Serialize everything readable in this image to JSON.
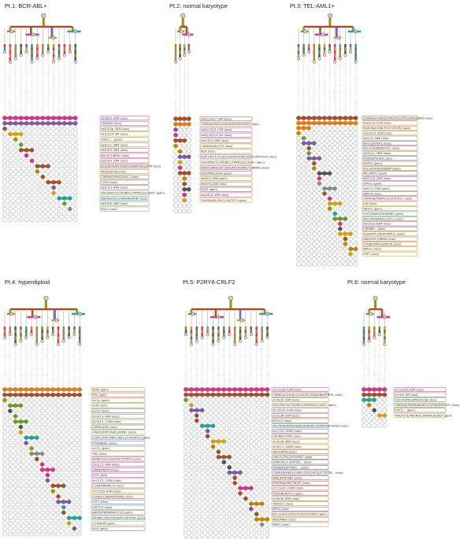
{
  "colors": {
    "brown": "#a0522d",
    "olive": "#b8860b",
    "purple": "#7b5aa6",
    "magenta": "#d63384",
    "green": "#6b9a2e",
    "teal": "#2aa198",
    "gray": "#8c8c8c",
    "gold": "#d4a017",
    "orange": "#e07b1a",
    "dark": "#555555"
  },
  "patients": [
    {
      "title": "Pt.1: BCR-ABL+",
      "columns": 14,
      "labels": [
        {
          "text": "del16(3–20M (loss)",
          "color": "magenta"
        },
        {
          "text": "CDKN2A (loss)",
          "color": "purple"
        },
        {
          "text": "del13(3p–38M (loss)",
          "color": "brown"
        },
        {
          "text": "del12(15–3M (loss)",
          "color": "gold"
        },
        {
          "text": "TOP2 (... (gain)",
          "color": "olive"
        },
        {
          "text": "del12(1–28M (loss)",
          "color": "green"
        },
        {
          "text": "del13(3–34M (loss)",
          "color": "brown"
        },
        {
          "text": "MALAT1/NEAT (loss)",
          "color": "magenta"
        },
        {
          "text": "del13(4–35M (loss)",
          "color": "magenta"
        },
        {
          "text": "BCR/ZFM/AFF4/KMT2A/NRP1P/SEPT5 (loss)",
          "color": "brown"
        },
        {
          "text": "PAX5/EIF2/B (loss)",
          "color": "olive"
        },
        {
          "text": "CAPRIN1/PMS2/RAC1 (loss)",
          "color": "brown"
        },
        {
          "text": "CCR4 (loss)",
          "color": "brown"
        },
        {
          "text": "del11(9–45M (loss)",
          "color": "purple"
        },
        {
          "text": "ERG/ZNF/OLF/RUNX1/TMPRSS2/CHAF1 (gain)",
          "color": "gold"
        },
        {
          "text": "ANKRD/ODC1/KM/NR/NTRK (loss)",
          "color": "teal"
        },
        {
          "text": "del19(6–26M (loss)",
          "color": "green"
        },
        {
          "text": "POLG (loss)",
          "color": "gray"
        }
      ],
      "rows": 20
    },
    {
      "title": "Pt.2: normal karyotype",
      "columns": 4,
      "labels": [
        {
          "text": "del1(14)(1–14M (loss)",
          "color": "brown"
        },
        {
          "text": "CDKN2A/PAX5/CDKN2B/MTAP/PAX5 (loss)",
          "color": "orange"
        },
        {
          "text": "del1(13)(3–11M (loss)",
          "color": "purple"
        },
        {
          "text": "del2(15)(14–2M (loss)",
          "color": "magenta"
        },
        {
          "text": "del13(2)-35M (loss)",
          "color": "brown"
        },
        {
          "text": "CDKN2A/NLC/T3 (loss)",
          "color": "olive"
        },
        {
          "text": "BCR (loss)",
          "color": "olive"
        },
        {
          "text": "IKZF1/NOTCH1/ELF4/GATA3/RB1/IKZF3/NOTCH1 (loss)",
          "color": "purple"
        },
        {
          "text": "ERG/ZNF/OLF/RUNX1/TMPRSS2/CHAF1 (gain)",
          "color": "gold"
        },
        {
          "text": "BARX1/ARHGEF28/AGAP1/RUNX1T1/NRN1 (loss)",
          "color": "magenta"
        },
        {
          "text": "NUP/PMS2/HOX (gain)",
          "color": "brown"
        },
        {
          "text": "delX(3)-32M (gain)",
          "color": "olive"
        },
        {
          "text": "del2(9)-43M (loss)",
          "color": "brown"
        },
        {
          "text": "PAX5 (gain)",
          "color": "dark"
        },
        {
          "text": "del16(3)-45M (loss)",
          "color": "magenta"
        },
        {
          "text": "CHIMA/NKL/MLFL/1A/TCF3 (gain)",
          "color": "gold"
        }
      ],
      "rows": 18
    },
    {
      "title": "Pt.3: TEL-AML1+",
      "columns": 12,
      "labels": [
        {
          "text": "CDKN2A/CHD4/ETV6/STK3/TP53/FRB2/BRD (loss)",
          "color": "brown"
        },
        {
          "text": "del12(3)–21M (loss)",
          "color": "orange"
        },
        {
          "text": "PAX5/KLF/CEB.P/TCF3/TOP2 (loss)",
          "color": "orange"
        },
        {
          "text": "del19(10–20M (loss)",
          "color": "olive"
        },
        {
          "text": "del1(3)-36M (loss)",
          "color": "green"
        },
        {
          "text": "BTG1/SKYER1 (loss)",
          "color": "purple"
        },
        {
          "text": "BCL2/CREBBP/ETV1 (loss)",
          "color": "brown"
        },
        {
          "text": "del3(11)-38M (loss)",
          "color": "green"
        },
        {
          "text": "RPS6/DPGHDK (loss)",
          "color": "purple"
        },
        {
          "text": "DHPS1 (gain)",
          "color": "brown"
        },
        {
          "text": "POLG/PHF6/CREBBP (gain)",
          "color": "olive"
        },
        {
          "text": "MEL/KMT2 (gain)",
          "color": "dark"
        },
        {
          "text": "del11(3)-25M (loss)",
          "color": "magenta"
        },
        {
          "text": "STAG1 (gain)",
          "color": "gray"
        },
        {
          "text": "del7(1)-33M (gain)",
          "color": "gray"
        },
        {
          "text": "ARPC8 (loss)",
          "color": "brown"
        },
        {
          "text": "CDKN2B/PSMA1/SULT/STK11 (loss)",
          "color": "magenta"
        },
        {
          "text": "JUN (loss)",
          "color": "gold"
        },
        {
          "text": "NR3C1 (gain)",
          "color": "olive"
        },
        {
          "text": "FHIT/SMAR/CHD8/RB1 (gain)",
          "color": "teal"
        },
        {
          "text": "MEF2/PRDM/SLC/2211 (loss)",
          "color": "green"
        },
        {
          "text": "del15(3)-63M (loss)",
          "color": "magenta"
        },
        {
          "text": "CREBBP... (loss)",
          "color": "dark"
        },
        {
          "text": "PLEK/NTF1/NUP/TRIP11 (gain)",
          "color": "gold"
        },
        {
          "text": "DBH/KMT2/RBM4 (loss)",
          "color": "brown"
        },
        {
          "text": "CTNB/TOMO/AZBF36 (loss)",
          "color": "olive"
        },
        {
          "text": "BRCA1 (loss)",
          "color": "olive"
        },
        {
          "text": "LRP1 (loss)",
          "color": "gold"
        }
      ],
      "rows": 30
    },
    {
      "title": "Pt.4: hyperdiploid",
      "columns": 15,
      "labels": [
        {
          "text": "PAX5 (gain)",
          "color": "orange"
        },
        {
          "text": "PHL (gain)",
          "color": "brown"
        },
        {
          "text": "chr1p (gain)",
          "color": "olive"
        },
        {
          "text": "chr8 (loss)",
          "color": "green"
        },
        {
          "text": "chr10 (loss)",
          "color": "dark"
        },
        {
          "text": "chr4(13–74M (loss)",
          "color": "green"
        },
        {
          "text": "chr4(13–118M (loss)",
          "color": "green"
        },
        {
          "text": "CDKN1A/RA (loss)",
          "color": "dark"
        },
        {
          "text": "CREB1/KMT2A/BCL6/RB1 (gain)",
          "color": "gold"
        },
        {
          "text": "CCNT1/FHIT/MEF2/RB1/ETV6/RPS3 (gain)",
          "color": "teal"
        },
        {
          "text": "PTEN/BDEL (loss)",
          "color": "purple"
        },
        {
          "text": "chr11 (gain)",
          "color": "olive"
        },
        {
          "text": "TNC (loss)",
          "color": "gray"
        },
        {
          "text": "NHBP2/COLQ/SPSEP1/TFRP2 (loss)",
          "color": "brown"
        },
        {
          "text": "chr2(11–74M (loss)",
          "color": "magenta"
        },
        {
          "text": "CRBN/PRLPR (loss)",
          "color": "magenta"
        },
        {
          "text": "chr9 (loss)",
          "color": "magenta"
        },
        {
          "text": "chr7(13–118M (loss)",
          "color": "purple"
        },
        {
          "text": "CCRN/MANNL73 (loss)",
          "color": "brown"
        },
        {
          "text": "chr15(25–44M (loss)",
          "color": "olive"
        },
        {
          "text": "CCND1/CDB/PAX5/ERG (loss)",
          "color": "brown"
        },
        {
          "text": "CFTG (loss)",
          "color": "purple"
        },
        {
          "text": "HIST1/3 (loss)",
          "color": "teal"
        },
        {
          "text": "ARID5/PRDM/NR3C1/5 (gain)",
          "color": "brown"
        },
        {
          "text": "APOBEC3/NCOA5/BPTF/ATOX/R (gain)",
          "color": "teal"
        },
        {
          "text": "CCT6A/P6 (gain)",
          "color": "gold"
        },
        {
          "text": "chrX (gain)",
          "color": "purple"
        }
      ],
      "rows": 28
    },
    {
      "title": "Pt.5: P2RY8-CRLF2",
      "columns": 16,
      "labels": [
        {
          "text": "chr12(35–53M (loss)",
          "color": "magenta"
        },
        {
          "text": "CDKN2A/CHL/DLG/GATA3/CR8/KANK/MTCP1 (loss)",
          "color": "brown"
        },
        {
          "text": "chr6(30–33M (loss)",
          "color": "green"
        },
        {
          "text": "ERG/ZNF/OLF/RUNX1/TMPRSS2/CHAF1 (gain)",
          "color": "gold"
        },
        {
          "text": "chr15(15–43M (loss)",
          "color": "purple"
        },
        {
          "text": "chr3(36–50M (loss)",
          "color": "brown"
        },
        {
          "text": "BTG1/3 (loss)",
          "color": "brown"
        },
        {
          "text": "NF2/NUN/MIMO/SBN/SR/BZNF/SF/MPP/SETD/GD (loss)",
          "color": "teal"
        },
        {
          "text": "chr7(13–156M (loss)",
          "color": "purple"
        },
        {
          "text": "CACNB1/TP63 (loss)",
          "color": "brown"
        },
        {
          "text": "chr6(26–46M (loss)",
          "color": "gold"
        },
        {
          "text": "chr6(11–136M (loss)",
          "color": "olive"
        },
        {
          "text": "ARHGAP30 (loss)",
          "color": "brown"
        },
        {
          "text": "CNOT4/TBC/SP3/RBST (loss)",
          "color": "brown"
        },
        {
          "text": "SPINT/ALLT1/EPT/R/... (loss)",
          "color": "dark"
        },
        {
          "text": "SMAD/REB/TPRD/... (gain)",
          "color": "dark"
        },
        {
          "text": "CDKN1B/MBOL/G/MP1/STAT/SETA/STTET/B... (loss)",
          "color": "purple"
        },
        {
          "text": "WRCH/PHPSB7 (loss)",
          "color": "brown"
        },
        {
          "text": "RPS/MAN/FBF/FNSPT (loss)",
          "color": "brown"
        },
        {
          "text": "chr11(20–103M (loss)",
          "color": "magenta"
        },
        {
          "text": "TOP2/BCR/OLG (gain)",
          "color": "brown"
        },
        {
          "text": "chr6(30–83M (loss)",
          "color": "brown"
        },
        {
          "text": "TBX/B11 (loss)",
          "color": "olive"
        },
        {
          "text": "BPG3 (loss)",
          "color": "purple"
        },
        {
          "text": "BCL11A/CFLP/SET/CIZ/ZO/CHD4 (gain)",
          "color": "brown"
        },
        {
          "text": "MED/PRKA (loss)",
          "color": "olive"
        },
        {
          "text": "MBD1 (loss)",
          "color": "gray"
        }
      ],
      "rows": 30
    },
    {
      "title": "Pt.6: normal karyotype",
      "columns": 5,
      "labels": [
        {
          "text": "chr13(26–23M (loss)",
          "color": "magenta"
        },
        {
          "text": "chr3(6–2M (loss)",
          "color": "brown"
        },
        {
          "text": "CD27/GATA3/PDGF/LGB (loss)",
          "color": "teal"
        },
        {
          "text": "CDKN2A/FAM/B/BA/B3/LTUP/NUP/MTCP1 (loss)",
          "color": "olive"
        },
        {
          "text": "TOP1/... (gain)",
          "color": "dark"
        },
        {
          "text": "TRA/TCF3/TNF/NOC/SMARCA/SBCP (gain)",
          "color": "gold"
        }
      ],
      "rows": 8
    }
  ]
}
